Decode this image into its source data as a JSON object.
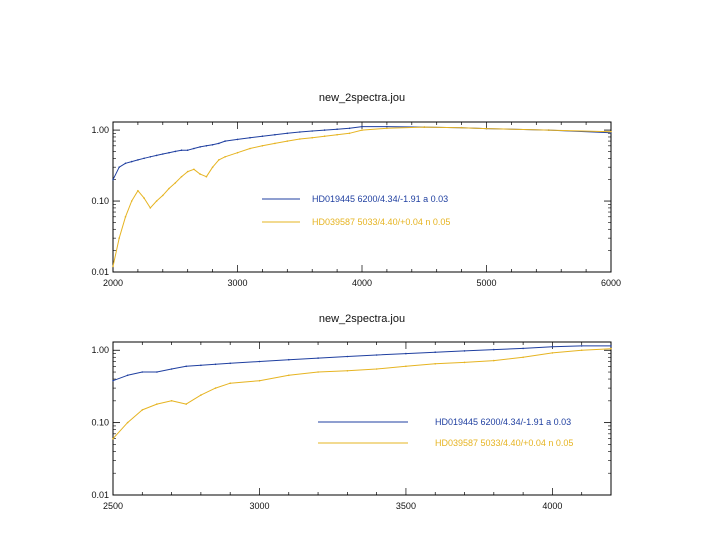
{
  "chart_data": [
    {
      "type": "line",
      "title": "new_2spectra.jou",
      "xlabel": "",
      "ylabel": "",
      "xlim": [
        2000,
        6000
      ],
      "ylim": [
        0.01,
        1.3
      ],
      "y_scale": "log",
      "x_ticks": [
        "2000",
        "3000",
        "4000",
        "5000",
        "6000"
      ],
      "y_ticks": [
        {
          "value": 1.0,
          "label": "1.00"
        },
        {
          "value": 0.1,
          "label": "0.10"
        },
        {
          "value": 0.01,
          "label": "0.01"
        }
      ],
      "legend_placement": "center",
      "series": [
        {
          "name": "HD019445   6200/4.34/-1.91 a 0.03",
          "color": "#1f3fa0",
          "x": [
            2000,
            2050,
            2100,
            2150,
            2200,
            2250,
            2300,
            2350,
            2400,
            2450,
            2500,
            2550,
            2600,
            2650,
            2700,
            2750,
            2800,
            2850,
            2900,
            3000,
            3100,
            3200,
            3300,
            3400,
            3500,
            3600,
            3700,
            3800,
            3900,
            4000,
            4200,
            4500,
            4800,
            5000,
            5500,
            6000
          ],
          "y": [
            0.2,
            0.3,
            0.34,
            0.36,
            0.38,
            0.4,
            0.42,
            0.44,
            0.46,
            0.48,
            0.5,
            0.52,
            0.52,
            0.55,
            0.58,
            0.6,
            0.62,
            0.65,
            0.7,
            0.74,
            0.78,
            0.82,
            0.86,
            0.9,
            0.94,
            0.97,
            1.0,
            1.03,
            1.06,
            1.12,
            1.12,
            1.1,
            1.08,
            1.05,
            1.0,
            0.92
          ]
        },
        {
          "name": "HD039587   5033/4.40/+0.04 n 0.05",
          "color": "#e6b422",
          "x": [
            2000,
            2050,
            2100,
            2150,
            2200,
            2250,
            2300,
            2350,
            2400,
            2450,
            2500,
            2550,
            2600,
            2650,
            2700,
            2750,
            2800,
            2850,
            2900,
            3000,
            3100,
            3200,
            3300,
            3400,
            3500,
            3600,
            3700,
            3800,
            3900,
            4000,
            4200,
            4500,
            4800,
            5000,
            5500,
            6000
          ],
          "y": [
            0.012,
            0.03,
            0.06,
            0.1,
            0.14,
            0.11,
            0.08,
            0.1,
            0.12,
            0.15,
            0.18,
            0.22,
            0.26,
            0.28,
            0.24,
            0.22,
            0.3,
            0.38,
            0.42,
            0.48,
            0.55,
            0.6,
            0.65,
            0.7,
            0.75,
            0.78,
            0.82,
            0.86,
            0.9,
            1.0,
            1.06,
            1.1,
            1.08,
            1.05,
            1.0,
            0.95
          ]
        }
      ]
    },
    {
      "type": "line",
      "title": "new_2spectra.jou",
      "xlabel": "",
      "ylabel": "",
      "xlim": [
        2500,
        4200
      ],
      "ylim": [
        0.01,
        1.3
      ],
      "y_scale": "log",
      "x_ticks": [
        "2500",
        "3000",
        "3500",
        "4000"
      ],
      "y_ticks": [
        {
          "value": 1.0,
          "label": "1.00"
        },
        {
          "value": 0.1,
          "label": "0.10"
        },
        {
          "value": 0.01,
          "label": "0.01"
        }
      ],
      "legend_placement": "right",
      "series": [
        {
          "name": "HD019445   6200/4.34/-1.91 a 0.03",
          "color": "#1f3fa0",
          "x": [
            2500,
            2550,
            2600,
            2650,
            2700,
            2750,
            2800,
            2850,
            2900,
            3000,
            3100,
            3200,
            3300,
            3400,
            3500,
            3600,
            3700,
            3800,
            3900,
            4000,
            4100,
            4200
          ],
          "y": [
            0.38,
            0.45,
            0.5,
            0.5,
            0.55,
            0.6,
            0.62,
            0.64,
            0.66,
            0.7,
            0.74,
            0.78,
            0.82,
            0.86,
            0.9,
            0.94,
            0.98,
            1.02,
            1.06,
            1.12,
            1.15,
            1.15
          ]
        },
        {
          "name": "HD039587   5033/4.40/+0.04 n 0.05",
          "color": "#e6b422",
          "x": [
            2500,
            2550,
            2600,
            2650,
            2700,
            2750,
            2800,
            2850,
            2900,
            3000,
            3100,
            3200,
            3300,
            3400,
            3500,
            3600,
            3700,
            3800,
            3900,
            4000,
            4100,
            4200
          ],
          "y": [
            0.06,
            0.1,
            0.15,
            0.18,
            0.2,
            0.18,
            0.24,
            0.3,
            0.35,
            0.38,
            0.45,
            0.5,
            0.52,
            0.55,
            0.6,
            0.65,
            0.68,
            0.72,
            0.8,
            0.92,
            1.0,
            1.05
          ]
        }
      ]
    }
  ]
}
